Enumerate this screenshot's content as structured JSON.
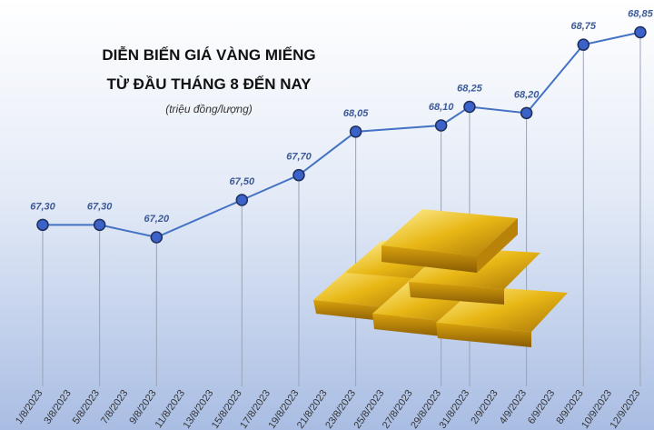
{
  "chart_data": {
    "type": "line",
    "title": "DIỄN BIẾN GIÁ VÀNG MIẾNG",
    "subtitle": "TỪ ĐẦU THÁNG 8 ĐẾN NAY",
    "unit": "(triệu đồng/lượng)",
    "categories": [
      "1/8/2023",
      "3/8/2023",
      "5/8/2023",
      "7/8/2023",
      "9/8/2023",
      "11/8/2023",
      "13/8/2023",
      "15/8/2023",
      "17/8/2023",
      "19/8/2023",
      "21/8/2023",
      "23/8/2023",
      "25/8/2023",
      "27/8/2023",
      "29/8/2023",
      "31/8/2023",
      "2/9/2023",
      "4/9/2023",
      "6/9/2023",
      "8/9/2023",
      "10/9/2023",
      "12/9/2023"
    ],
    "series": [
      {
        "color": "#4472c4",
        "x": [
          "1/8/2023",
          "5/8/2023",
          "9/8/2023",
          "15/8/2023",
          "19/8/2023",
          "23/8/2023",
          "29/8/2023",
          "31/8/2023",
          "4/9/2023",
          "8/9/2023",
          "12/9/2023"
        ],
        "values": [
          67.3,
          67.3,
          67.2,
          67.5,
          67.7,
          68.05,
          68.1,
          68.25,
          68.2,
          68.75,
          68.85
        ],
        "value_labels": [
          "67,30",
          "67,30",
          "67,20",
          "67,50",
          "67,70",
          "68,05",
          "68,10",
          "68,25",
          "68,20",
          "68,75",
          "68,85"
        ]
      }
    ],
    "ylim": [
      66,
      69
    ]
  }
}
